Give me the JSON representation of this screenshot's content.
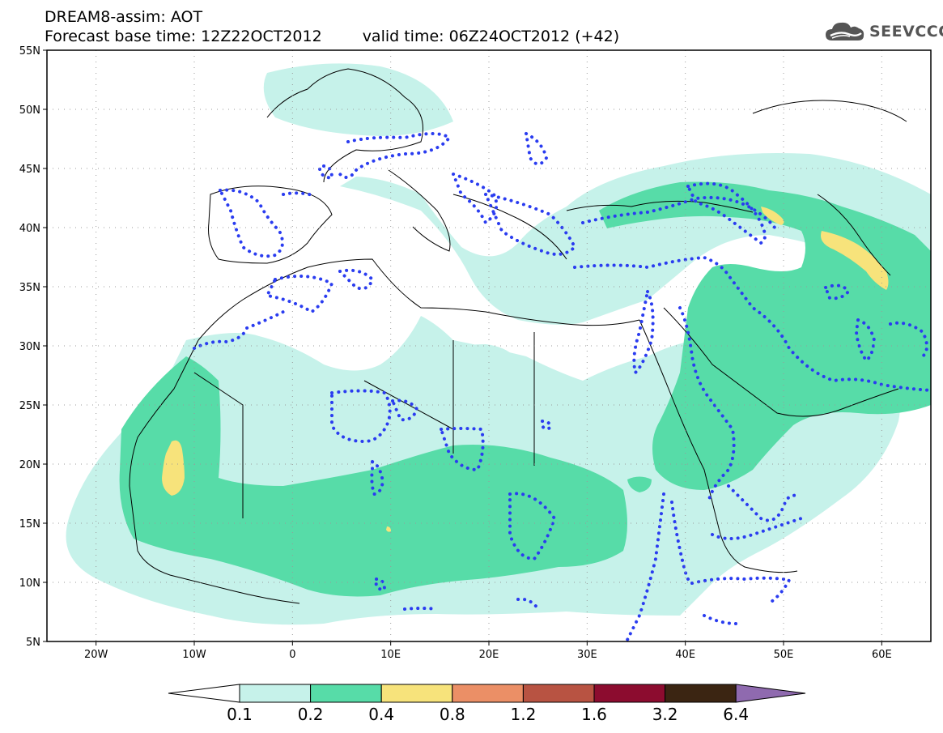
{
  "header": {
    "title_line1": "DREAM8-assim: AOT",
    "base_time": "Forecast base time: 12Z22OCT2012",
    "valid_time": "valid time: 06Z24OCT2012 (+42)",
    "logo_text": "SEEVCCC"
  },
  "map": {
    "lon_range": [
      -25,
      65
    ],
    "lat_range": [
      5,
      55
    ],
    "lat_ticks": [
      "55N",
      "50N",
      "45N",
      "40N",
      "35N",
      "30N",
      "25N",
      "20N",
      "15N",
      "10N",
      "5N"
    ],
    "lon_ticks": [
      "20W",
      "10W",
      "0",
      "10E",
      "20E",
      "30E",
      "40E",
      "50E",
      "60E"
    ],
    "grid": true,
    "colors": {
      "c_0_1": "#c6f2ea",
      "c_0_2": "#57dca8",
      "c_0_4": "#f7e37b",
      "contour": "#2a3cf0",
      "coast": "#000000"
    }
  },
  "colorbar": {
    "labels": [
      "0.1",
      "0.2",
      "0.4",
      "0.8",
      "1.2",
      "1.6",
      "3.2",
      "6.4"
    ],
    "colors": [
      "#ffffff",
      "#c6f2ea",
      "#57dca8",
      "#f7e37b",
      "#eb8f66",
      "#b85342",
      "#8c0c2f",
      "#3b2512",
      "#8f6aaf"
    ]
  }
}
